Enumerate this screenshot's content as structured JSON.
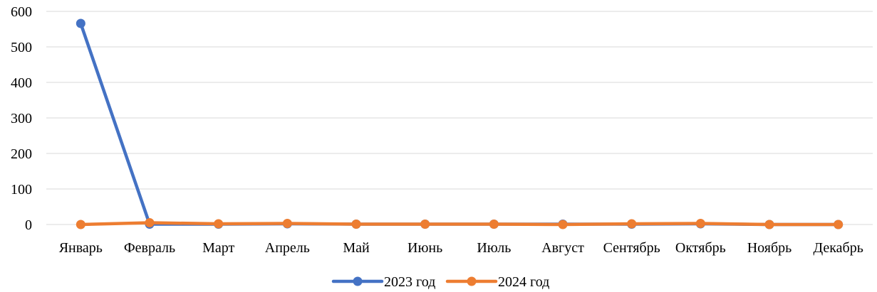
{
  "chart_data": {
    "type": "line",
    "categories": [
      "Январь",
      "Февраль",
      "Март",
      "Апрель",
      "Май",
      "Июнь",
      "Июль",
      "Август",
      "Сентябрь",
      "Октябрь",
      "Ноябрь",
      "Декабрь"
    ],
    "series": [
      {
        "name": "2023 год",
        "color": "#4472C4",
        "values": [
          566,
          1,
          1,
          2,
          1,
          1,
          1,
          1,
          1,
          2,
          0,
          0
        ]
      },
      {
        "name": "2024 год",
        "color": "#ED7D31",
        "values": [
          0,
          5,
          2,
          3,
          1,
          1,
          1,
          0,
          2,
          3,
          0,
          0
        ]
      }
    ],
    "title": "",
    "xlabel": "",
    "ylabel": "",
    "ylim": [
      0,
      600
    ],
    "yticks": [
      "0",
      "100",
      "200",
      "300",
      "400",
      "500",
      "600"
    ],
    "grid": true,
    "legend_position": "bottom"
  }
}
